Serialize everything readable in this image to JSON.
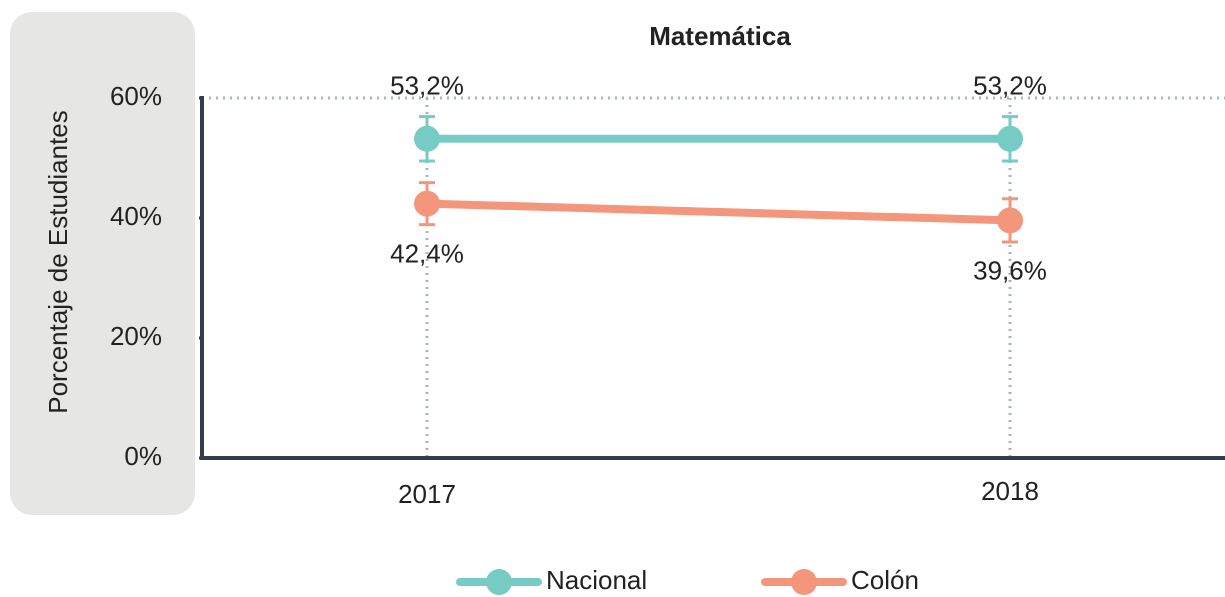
{
  "chart_data": {
    "type": "line",
    "title": "Matemática",
    "y_label": "Porcentaje de Estudiantes",
    "categories": [
      "2017",
      "2018"
    ],
    "series": [
      {
        "name": "Nacional",
        "color": "#76ccc4",
        "values": [
          53.2,
          53.2
        ],
        "value_labels": [
          "53,2%",
          "53,2%"
        ],
        "errors": [
          3.7,
          3.7
        ]
      },
      {
        "name": "Colón",
        "color": "#f4967b",
        "values": [
          42.4,
          39.6
        ],
        "value_labels": [
          "42,4%",
          "39,6%"
        ],
        "errors": [
          3.5,
          3.6
        ]
      }
    ],
    "ylim": [
      0,
      60
    ],
    "yticks": [
      {
        "value": 0,
        "label": "0%"
      },
      {
        "value": 20,
        "label": "20%"
      },
      {
        "value": 40,
        "label": "40%"
      },
      {
        "value": 60,
        "label": "60%"
      }
    ],
    "legend": "bottom"
  }
}
